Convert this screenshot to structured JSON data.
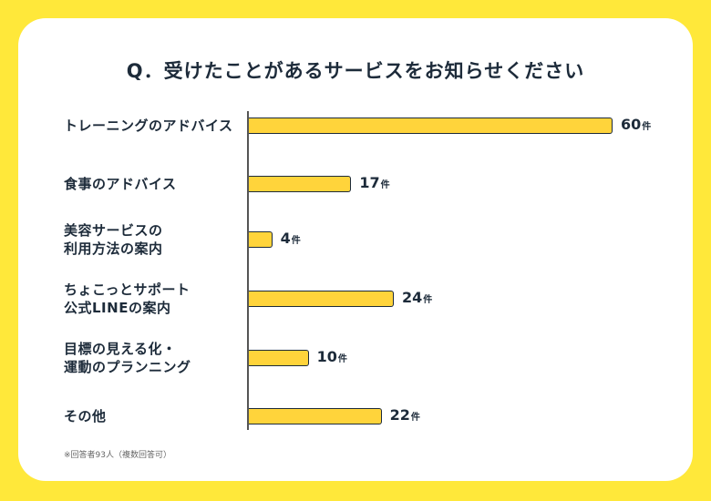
{
  "chart_data": {
    "type": "bar",
    "orientation": "horizontal",
    "title": "Q．受けたことがあるサービスをお知らせください",
    "categories": [
      "トレーニングのアドバイス",
      "食事のアドバイス",
      "美容サービスの\n利用方法の案内",
      "ちょこっとサポート\n公式LINEの案内",
      "目標の見える化・\n運動のプランニング",
      "その他"
    ],
    "values": [
      60,
      17,
      4,
      24,
      10,
      22
    ],
    "unit": "件",
    "xlim": [
      0,
      60
    ],
    "grid": false,
    "note": "※回答者93人（複数回答可）"
  },
  "colors": {
    "background": "#FFE83A",
    "bar": "#FFD43B",
    "text": "#1d2b3a"
  }
}
